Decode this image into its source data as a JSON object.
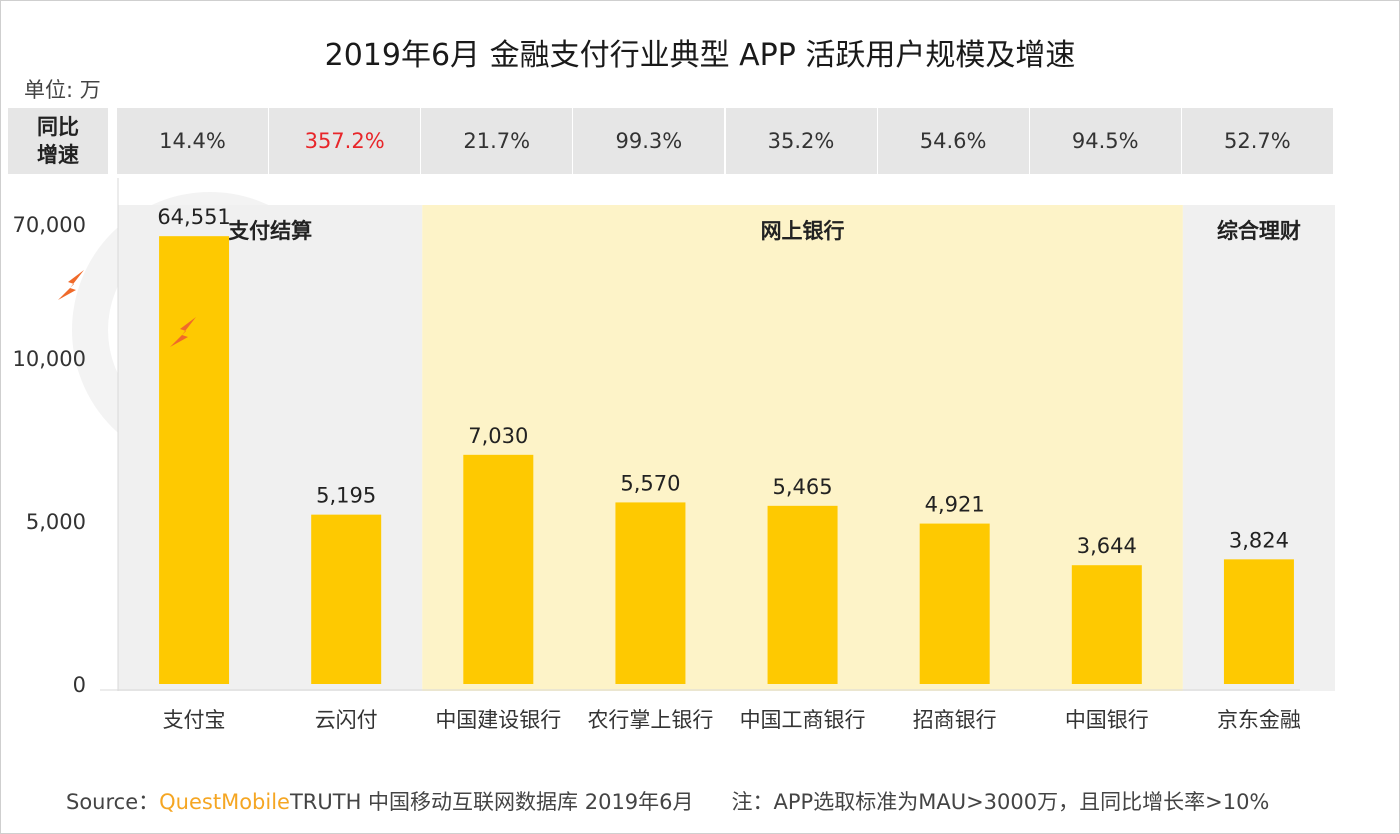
{
  "title": "2019年6月 金融支付行业典型 APP 活跃用户规模及增速",
  "unit": "单位: 万",
  "growth_label": "同比\n增速",
  "footer": {
    "source": "Source：",
    "brand": "QuestMobile",
    "database": "TRUTH 中国移动互联网数据库 2019年6月",
    "note": "注：APP选取标准为MAU>3000万，且同比增长率>10%"
  },
  "colors": {
    "bar": "#fec901",
    "highlight_band": "#fdf3c8",
    "grey_band": "#f0f0f0",
    "growth_highlight": "#e8262a",
    "break_mark": "#f06a2a"
  },
  "chart_data": {
    "type": "bar",
    "categories": [
      "支付宝",
      "云闪付",
      "中国建设银行",
      "农行掌上银行",
      "中国工商银行",
      "招商银行",
      "中国银行",
      "京东金融"
    ],
    "values": [
      64551,
      5195,
      7030,
      5570,
      5465,
      4921,
      3644,
      3824
    ],
    "value_labels": [
      "64,551",
      "5,195",
      "7,030",
      "5,570",
      "5,465",
      "4,921",
      "3,644",
      "3,824"
    ],
    "growth": [
      "14.4%",
      "357.2%",
      "21.7%",
      "99.3%",
      "35.2%",
      "54.6%",
      "94.5%",
      "52.7%"
    ],
    "growth_highlight_index": 1,
    "y_ticks": [
      "70,000",
      "10,000",
      "5,000",
      "0"
    ],
    "y_tick_values": [
      70000,
      10000,
      5000,
      0
    ],
    "axis_break": true,
    "groups": [
      {
        "label": "支付结算",
        "start": 0,
        "end": 1,
        "style": "grey"
      },
      {
        "label": "网上银行",
        "start": 2,
        "end": 6,
        "style": "yellow"
      },
      {
        "label": "综合理财",
        "start": 7,
        "end": 7,
        "style": "grey"
      }
    ],
    "xlabel": "",
    "ylabel": ""
  }
}
